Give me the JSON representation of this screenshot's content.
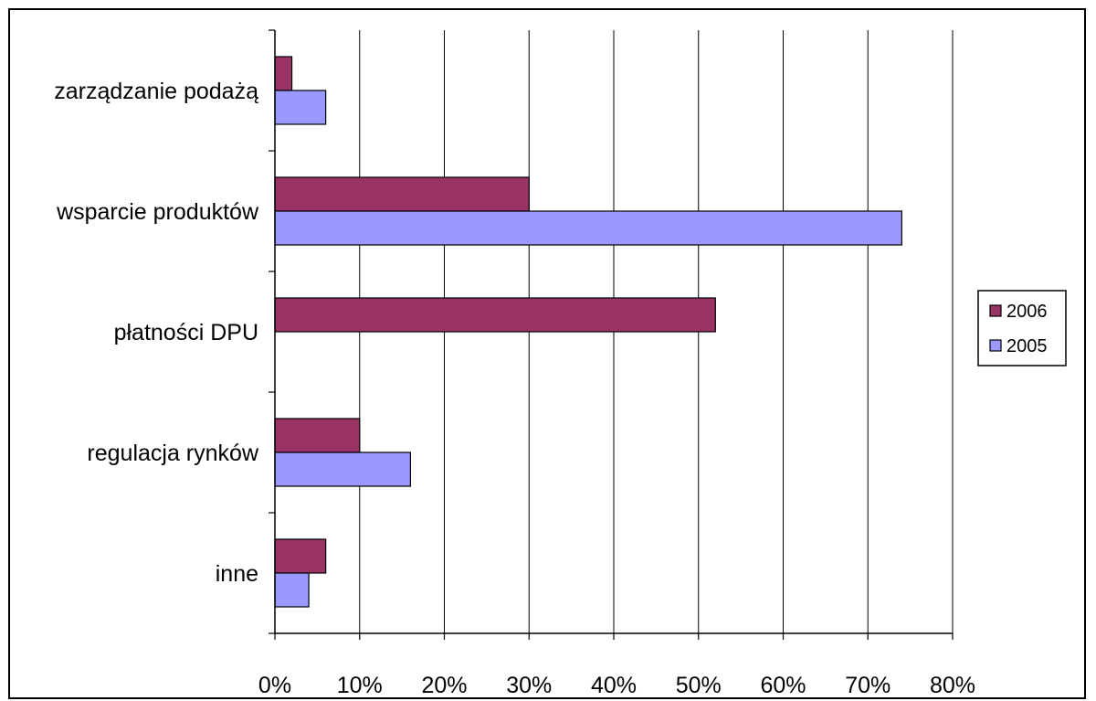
{
  "chart_data": {
    "type": "bar",
    "orientation": "horizontal",
    "categories": [
      "zarządzanie podażą",
      "wsparcie produktów",
      "płatności DPU",
      "regulacja rynków",
      "inne"
    ],
    "series": [
      {
        "name": "2006",
        "color": "#993366",
        "values": [
          2,
          30,
          52,
          10,
          6
        ]
      },
      {
        "name": "2005",
        "color": "#9999ff",
        "values": [
          6,
          74,
          0,
          16,
          4
        ]
      }
    ],
    "x_ticks": [
      "0%",
      "10%",
      "20%",
      "30%",
      "40%",
      "50%",
      "60%",
      "70%",
      "80%"
    ],
    "xlim": [
      0,
      80
    ],
    "grid": "vertical",
    "legend_position": "right"
  }
}
